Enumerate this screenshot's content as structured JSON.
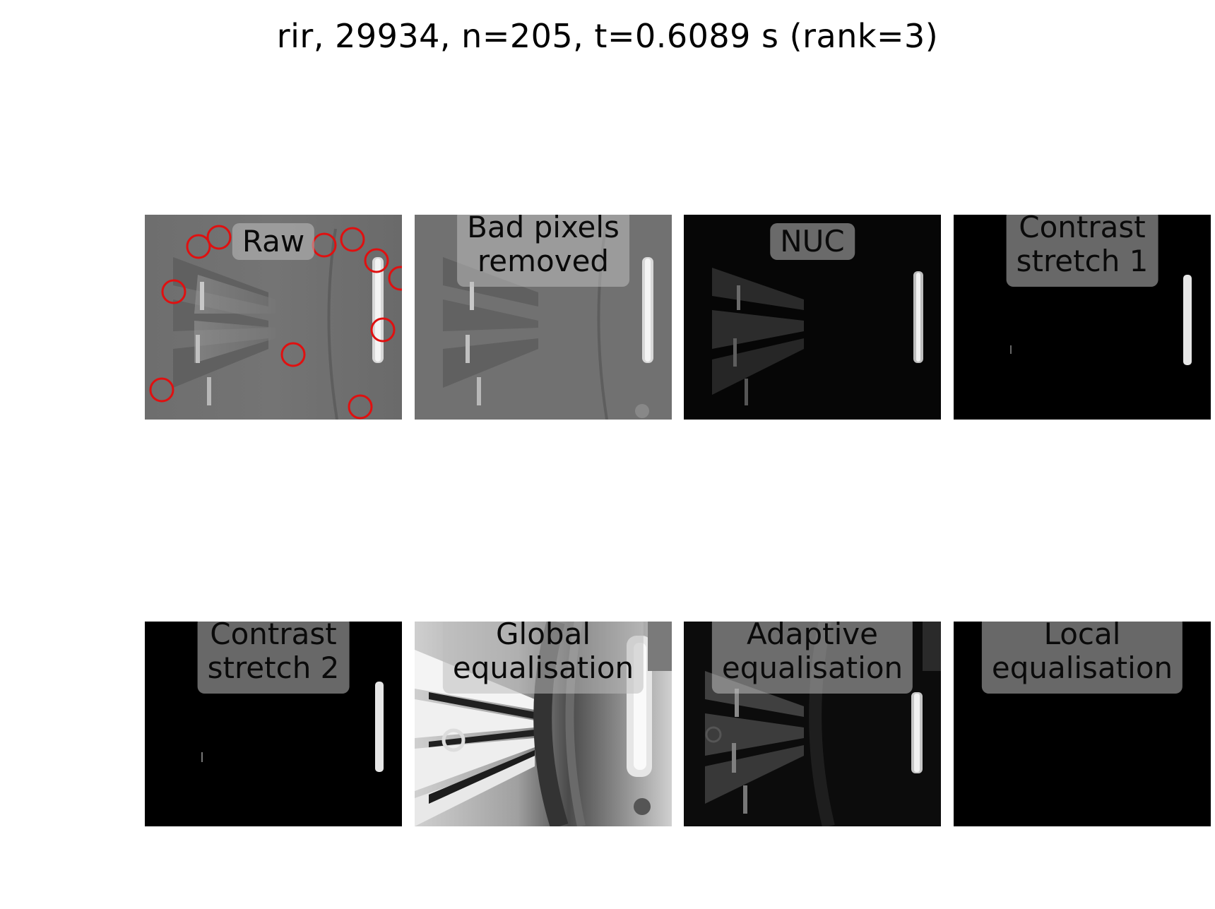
{
  "figure": {
    "title": "rir, 29934, n=205, t=0.6089 s (rank=3)"
  },
  "panels": [
    {
      "lines": [
        "Raw"
      ],
      "tone": "mid-grey",
      "annotation": "red circles mark bad pixels"
    },
    {
      "lines": [
        "Bad pixels",
        "removed"
      ],
      "tone": "mid-grey"
    },
    {
      "lines": [
        "NUC"
      ],
      "tone": "dark"
    },
    {
      "lines": [
        "Contrast",
        "stretch 1"
      ],
      "tone": "black"
    },
    {
      "lines": [
        "Contrast",
        "stretch 2"
      ],
      "tone": "black"
    },
    {
      "lines": [
        "Global",
        "equalisation"
      ],
      "tone": "bright"
    },
    {
      "lines": [
        "Adaptive",
        "equalisation"
      ],
      "tone": "dark"
    },
    {
      "lines": [
        "Local",
        "equalisation"
      ],
      "tone": "black"
    }
  ],
  "colors": {
    "circle": "#e01010",
    "label_box": "#bebebe"
  }
}
